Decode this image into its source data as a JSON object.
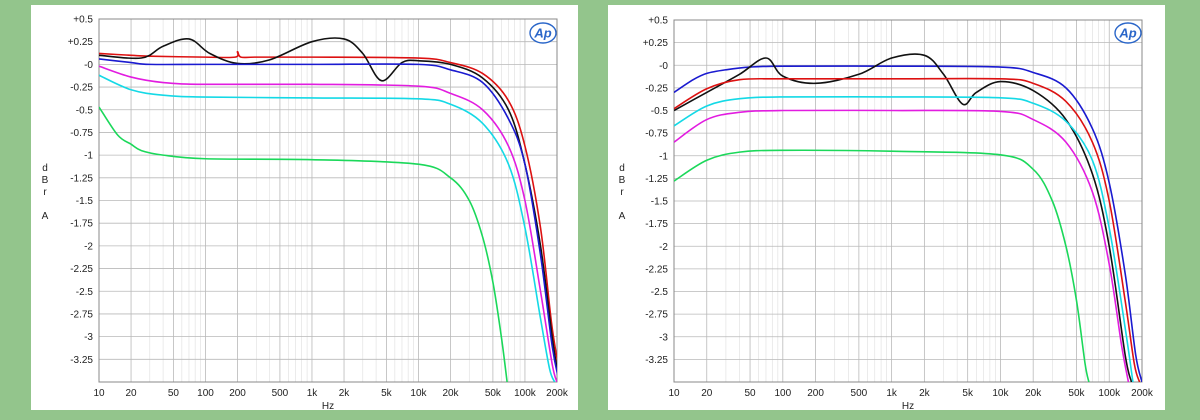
{
  "logo_text": "Ap",
  "chart_data": [
    {
      "id": "left",
      "type": "line",
      "xscale": "log",
      "xlim": [
        10,
        200000
      ],
      "ylim": [
        -3.5,
        0.5
      ],
      "xlabel": "Hz",
      "ylabel": [
        "d",
        "B",
        "r",
        "",
        "A"
      ],
      "x_ticks": [
        10,
        20,
        50,
        100,
        200,
        500,
        1000,
        2000,
        5000,
        10000,
        20000,
        50000,
        100000,
        200000
      ],
      "x_tick_labels": [
        "10",
        "20",
        "50",
        "100",
        "200",
        "500",
        "1k",
        "2k",
        "5k",
        "10k",
        "20k",
        "50k",
        "100k",
        "200k"
      ],
      "y_ticks": [
        0.5,
        0.25,
        0,
        -0.25,
        -0.5,
        -0.75,
        -1,
        -1.25,
        -1.5,
        -1.75,
        -2,
        -2.25,
        -2.5,
        -2.75,
        -3,
        -3.25
      ],
      "y_tick_labels": [
        "+0.5",
        "+0.25",
        "-0",
        "-0.25",
        "-0.5",
        "-0.75",
        "-1",
        "-1.25",
        "-1.5",
        "-1.75",
        "-2",
        "-2.25",
        "-2.5",
        "-2.75",
        "-3",
        "-3.25"
      ],
      "series": [
        {
          "name": "red",
          "color": "#dd1111",
          "x": [
            10,
            20,
            30,
            100,
            190,
            200,
            215,
            300,
            1000,
            10000,
            20000,
            40000,
            70000,
            100000,
            140000,
            180000,
            220000
          ],
          "y": [
            0.12,
            0.1,
            0.09,
            0.08,
            0.08,
            0.14,
            0.08,
            0.08,
            0.08,
            0.07,
            0.02,
            -0.1,
            -0.4,
            -0.9,
            -1.8,
            -2.9,
            -3.5
          ]
        },
        {
          "name": "black",
          "color": "#111111",
          "x": [
            10,
            25,
            40,
            70,
            110,
            200,
            400,
            1000,
            2000,
            3000,
            4500,
            7000,
            10000,
            20000,
            40000,
            70000,
            100000,
            140000,
            180000,
            210000
          ],
          "y": [
            0.1,
            0.07,
            0.2,
            0.28,
            0.12,
            0.01,
            0.05,
            0.25,
            0.28,
            0.12,
            -0.18,
            0.02,
            0.04,
            0,
            -0.15,
            -0.5,
            -1.1,
            -2.0,
            -3.0,
            -3.5
          ]
        },
        {
          "name": "blue",
          "color": "#1a1ad0",
          "x": [
            10,
            20,
            30,
            100,
            1000,
            10000,
            20000,
            40000,
            70000,
            100000,
            140000,
            180000,
            210000
          ],
          "y": [
            0.06,
            0.02,
            0,
            0,
            0,
            0,
            -0.06,
            -0.2,
            -0.6,
            -1.1,
            -2.1,
            -3.1,
            -3.5
          ]
        },
        {
          "name": "magenta",
          "color": "#e21ce0",
          "x": [
            10,
            20,
            40,
            100,
            1000,
            10000,
            20000,
            40000,
            70000,
            100000,
            140000,
            180000,
            200000
          ],
          "y": [
            -0.02,
            -0.14,
            -0.2,
            -0.22,
            -0.22,
            -0.24,
            -0.32,
            -0.5,
            -0.9,
            -1.5,
            -2.5,
            -3.3,
            -3.5
          ]
        },
        {
          "name": "cyan",
          "color": "#14d9e6",
          "x": [
            10,
            20,
            40,
            100,
            1000,
            10000,
            20000,
            40000,
            70000,
            100000,
            140000,
            170000,
            190000
          ],
          "y": [
            -0.12,
            -0.28,
            -0.34,
            -0.36,
            -0.37,
            -0.38,
            -0.44,
            -0.65,
            -1.1,
            -1.8,
            -2.8,
            -3.35,
            -3.5
          ]
        },
        {
          "name": "green",
          "color": "#1bd85a",
          "x": [
            10,
            15,
            20,
            25,
            40,
            100,
            1000,
            10000,
            20000,
            30000,
            40000,
            50000,
            60000,
            68000
          ],
          "y": [
            -0.47,
            -0.78,
            -0.88,
            -0.95,
            -1.0,
            -1.04,
            -1.05,
            -1.1,
            -1.25,
            -1.5,
            -1.9,
            -2.4,
            -3.0,
            -3.5
          ]
        }
      ]
    },
    {
      "id": "right",
      "type": "line",
      "xscale": "log",
      "xlim": [
        10,
        200000
      ],
      "ylim": [
        -3.5,
        0.5
      ],
      "xlabel": "Hz",
      "ylabel": [
        "d",
        "B",
        "r",
        "",
        "A"
      ],
      "x_ticks": [
        10,
        20,
        50,
        100,
        200,
        500,
        1000,
        2000,
        5000,
        10000,
        20000,
        50000,
        100000,
        200000
      ],
      "x_tick_labels": [
        "10",
        "20",
        "50",
        "100",
        "200",
        "500",
        "1k",
        "2k",
        "5k",
        "10k",
        "20k",
        "50k",
        "100k",
        "200k"
      ],
      "y_ticks": [
        0.5,
        0.25,
        0,
        -0.25,
        -0.5,
        -0.75,
        -1,
        -1.25,
        -1.5,
        -1.75,
        -2,
        -2.25,
        -2.5,
        -2.75,
        -3,
        -3.25
      ],
      "y_tick_labels": [
        "+0.5",
        "+0.25",
        "-0",
        "-0.25",
        "-0.5",
        "-0.75",
        "-1",
        "-1.25",
        "-1.5",
        "-1.75",
        "-2",
        "-2.25",
        "-2.5",
        "-2.75",
        "-3",
        "-3.25"
      ],
      "series": [
        {
          "name": "blue",
          "color": "#1a1ad0",
          "x": [
            10,
            15,
            20,
            30,
            50,
            100,
            1000,
            10000,
            20000,
            40000,
            70000,
            100000,
            140000,
            175000,
            200000
          ],
          "y": [
            -0.3,
            -0.16,
            -0.09,
            -0.05,
            -0.02,
            -0.01,
            -0.01,
            -0.02,
            -0.08,
            -0.25,
            -0.7,
            -1.3,
            -2.3,
            -3.2,
            -3.5
          ]
        },
        {
          "name": "black",
          "color": "#111111",
          "x": [
            10,
            20,
            40,
            70,
            100,
            200,
            500,
            1000,
            2000,
            3000,
            4500,
            6000,
            10000,
            20000,
            40000,
            70000,
            100000,
            140000,
            160000
          ],
          "y": [
            -0.5,
            -0.3,
            -0.1,
            0.08,
            -0.12,
            -0.2,
            -0.1,
            0.08,
            0.11,
            -0.1,
            -0.43,
            -0.3,
            -0.18,
            -0.28,
            -0.6,
            -1.2,
            -2.0,
            -3.2,
            -3.5
          ]
        },
        {
          "name": "red",
          "color": "#dd1111",
          "x": [
            10,
            20,
            40,
            100,
            1000,
            10000,
            20000,
            40000,
            70000,
            100000,
            140000,
            170000,
            190000
          ],
          "y": [
            -0.48,
            -0.26,
            -0.16,
            -0.15,
            -0.15,
            -0.15,
            -0.2,
            -0.4,
            -0.85,
            -1.5,
            -2.6,
            -3.3,
            -3.5
          ]
        },
        {
          "name": "cyan",
          "color": "#14d9e6",
          "x": [
            10,
            20,
            40,
            100,
            1000,
            10000,
            20000,
            40000,
            70000,
            100000,
            140000,
            165000
          ],
          "y": [
            -0.67,
            -0.45,
            -0.37,
            -0.35,
            -0.35,
            -0.36,
            -0.42,
            -0.62,
            -1.05,
            -1.8,
            -2.9,
            -3.5
          ]
        },
        {
          "name": "magenta",
          "color": "#e21ce0",
          "x": [
            10,
            20,
            40,
            100,
            1000,
            10000,
            20000,
            40000,
            70000,
            100000,
            130000,
            150000
          ],
          "y": [
            -0.85,
            -0.6,
            -0.52,
            -0.5,
            -0.5,
            -0.51,
            -0.6,
            -0.85,
            -1.4,
            -2.2,
            -3.1,
            -3.5
          ]
        },
        {
          "name": "green",
          "color": "#1bd85a",
          "x": [
            10,
            20,
            40,
            100,
            1000,
            10000,
            20000,
            30000,
            40000,
            50000,
            60000,
            65000
          ],
          "y": [
            -1.28,
            -1.05,
            -0.96,
            -0.94,
            -0.95,
            -0.99,
            -1.15,
            -1.5,
            -2.0,
            -2.6,
            -3.3,
            -3.5
          ]
        }
      ]
    }
  ]
}
